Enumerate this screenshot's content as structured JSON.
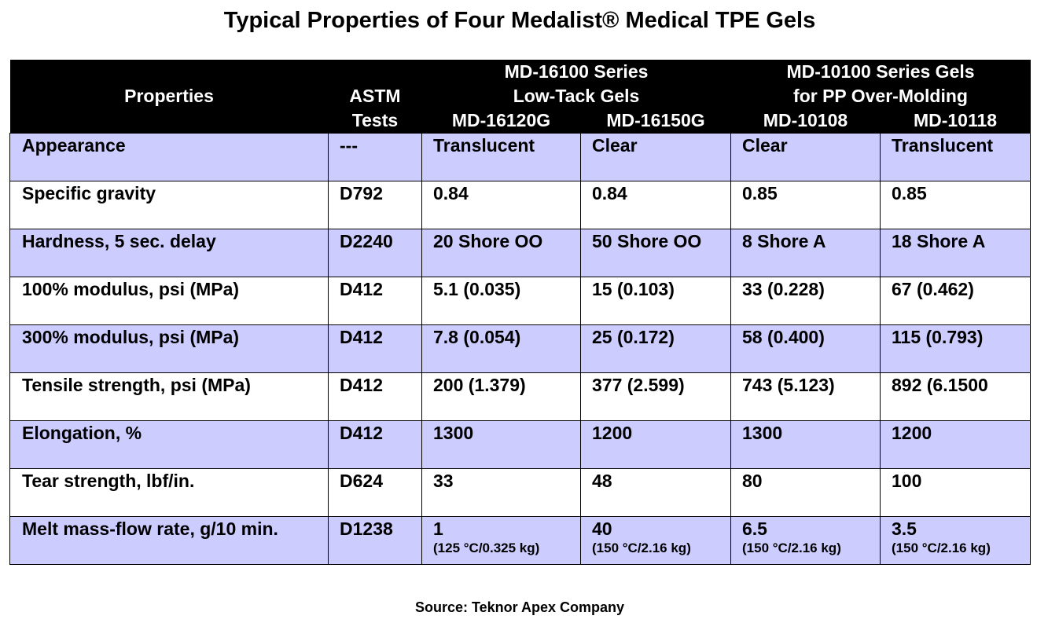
{
  "title": "Typical Properties of Four Medalist® Medical TPE Gels",
  "source": "Source: Teknor Apex Company",
  "header": {
    "properties": "Properties",
    "astm_line1": "ASTM",
    "astm_line2": "Tests",
    "group1_line1": "MD-16100 Series",
    "group1_line2": "Low-Tack Gels",
    "group2_line1": "MD-10100 Series Gels",
    "group2_line2": "for PP Over-Molding",
    "products": [
      "MD-16120G",
      "MD-16150G",
      "MD-10108",
      "MD-10118"
    ]
  },
  "rows": [
    {
      "property": "Appearance",
      "astm": "---",
      "values": [
        "Translucent",
        "Clear",
        "Clear",
        "Translucent"
      ]
    },
    {
      "property": "Specific gravity",
      "astm": "D792",
      "values": [
        "0.84",
        "0.84",
        "0.85",
        "0.85"
      ]
    },
    {
      "property": "Hardness, 5 sec. delay",
      "astm": "D2240",
      "values": [
        "20 Shore OO",
        "50 Shore OO",
        "8 Shore A",
        "18 Shore A"
      ]
    },
    {
      "property": "100% modulus, psi (MPa)",
      "astm": "D412",
      "values": [
        "5.1 (0.035)",
        "15 (0.103)",
        "33 (0.228)",
        "67 (0.462)"
      ]
    },
    {
      "property": "300% modulus, psi (MPa)",
      "astm": "D412",
      "values": [
        "7.8 (0.054)",
        "25 (0.172)",
        "58 (0.400)",
        "115 (0.793)"
      ]
    },
    {
      "property": "Tensile strength, psi (MPa)",
      "astm": "D412",
      "values": [
        "200 (1.379)",
        "377 (2.599)",
        "743 (5.123)",
        "892 (6.1500"
      ]
    },
    {
      "property": "Elongation, %",
      "astm": "D412",
      "values": [
        "1300",
        "1200",
        "1300",
        "1200"
      ]
    },
    {
      "property": "Tear strength, lbf/in.",
      "astm": "D624",
      "values": [
        "33",
        "48",
        "80",
        "100"
      ]
    },
    {
      "property": "Melt mass-flow rate, g/10 min.",
      "astm": "D1238",
      "values": [
        "1",
        "40",
        "6.5",
        "3.5"
      ],
      "conditions": [
        "(125 °C/0.325 kg)",
        "(150 °C/2.16 kg)",
        "(150 °C/2.16 kg)",
        "(150 °C/2.16 kg)"
      ]
    }
  ],
  "colors": {
    "header_bg": "#000000",
    "header_text": "#ffffff",
    "shaded_row": "#ccccff",
    "plain_row": "#ffffff"
  }
}
